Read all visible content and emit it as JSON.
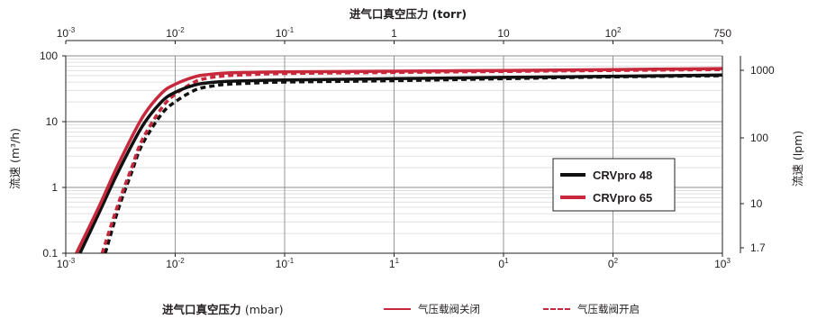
{
  "chart_data": {
    "type": "line",
    "x_scale": "log",
    "y_scale": "log",
    "xlim": [
      0.001,
      1000
    ],
    "ylim": [
      0.1,
      100
    ],
    "bottom_axis": {
      "label": "进气口真空压力",
      "unit": "(mbar)",
      "tick_values": [
        0.001,
        0.01,
        0.1,
        1,
        10,
        100,
        1000
      ],
      "tick_labels": [
        {
          "base": "10",
          "exp": "-3"
        },
        {
          "base": "10",
          "exp": "-2"
        },
        {
          "base": "10",
          "exp": "-1"
        },
        {
          "base": "1",
          "exp": "1"
        },
        {
          "base": "0",
          "exp": "1"
        },
        {
          "base": "0",
          "exp": "2"
        },
        {
          "base": "10",
          "exp": "3"
        }
      ]
    },
    "top_axis": {
      "label": "进气口真空压力 (torr)",
      "tick_labels": [
        {
          "base": "10",
          "exp": "-3"
        },
        {
          "base": "10",
          "exp": "-2"
        },
        {
          "base": "10",
          "exp": "-1"
        },
        {
          "base": "1",
          "exp": ""
        },
        {
          "base": "10",
          "exp": ""
        },
        {
          "base": "10",
          "exp": "2"
        },
        {
          "base": "750",
          "exp": ""
        }
      ]
    },
    "left_axis": {
      "label": "流速 (m³/h)",
      "tick_values": [
        0.1,
        1,
        10,
        100
      ],
      "tick_labels": [
        "0.1",
        "1",
        "10",
        "100"
      ]
    },
    "right_axis": {
      "label": "流速 (lpm)",
      "tick_labels": [
        "1000",
        "100",
        "10",
        "1.7"
      ]
    },
    "grid": true,
    "legend": {
      "placement": "right-center",
      "entries": [
        "CRVpro 48",
        "CRVpro 65"
      ]
    },
    "line_styles": {
      "solid": "气压载阀关闭",
      "dashed": "气压载阀开启"
    },
    "series": [
      {
        "name": "CRVpro 48",
        "style": "solid",
        "color": "#111111",
        "x": [
          0.00135,
          0.002,
          0.003,
          0.005,
          0.0075,
          0.01,
          0.015,
          0.02,
          0.03,
          0.05,
          0.1,
          1,
          10,
          100,
          1000
        ],
        "y": [
          0.1,
          0.4,
          1.7,
          8.5,
          20,
          28,
          36,
          39,
          41,
          42,
          43,
          45,
          47,
          49,
          51
        ]
      },
      {
        "name": "CRVpro 48",
        "style": "dashed",
        "color": "#111111",
        "x": [
          0.0023,
          0.003,
          0.004,
          0.005,
          0.0075,
          0.01,
          0.015,
          0.02,
          0.03,
          0.05,
          0.1,
          1,
          10,
          100,
          1000
        ],
        "y": [
          0.1,
          0.45,
          1.7,
          4.5,
          13,
          20,
          30,
          34,
          37,
          38.5,
          40,
          42,
          45,
          48,
          50
        ]
      },
      {
        "name": "CRVpro 65",
        "style": "solid",
        "color": "#c8283c",
        "x": [
          0.00125,
          0.002,
          0.003,
          0.005,
          0.0075,
          0.01,
          0.015,
          0.02,
          0.03,
          0.05,
          0.1,
          1,
          10,
          100,
          1000
        ],
        "y": [
          0.1,
          0.5,
          2.2,
          11.5,
          27,
          37,
          48,
          52,
          55,
          56,
          57,
          58.5,
          60,
          62,
          64
        ]
      },
      {
        "name": "CRVpro 65",
        "style": "dashed",
        "color": "#c8283c",
        "x": [
          0.00215,
          0.003,
          0.004,
          0.005,
          0.0075,
          0.01,
          0.015,
          0.02,
          0.03,
          0.05,
          0.1,
          1,
          10,
          100,
          1000
        ],
        "y": [
          0.1,
          0.55,
          2,
          5.3,
          16,
          26,
          40,
          46,
          50,
          52,
          54,
          56,
          58,
          60,
          62
        ]
      }
    ]
  }
}
